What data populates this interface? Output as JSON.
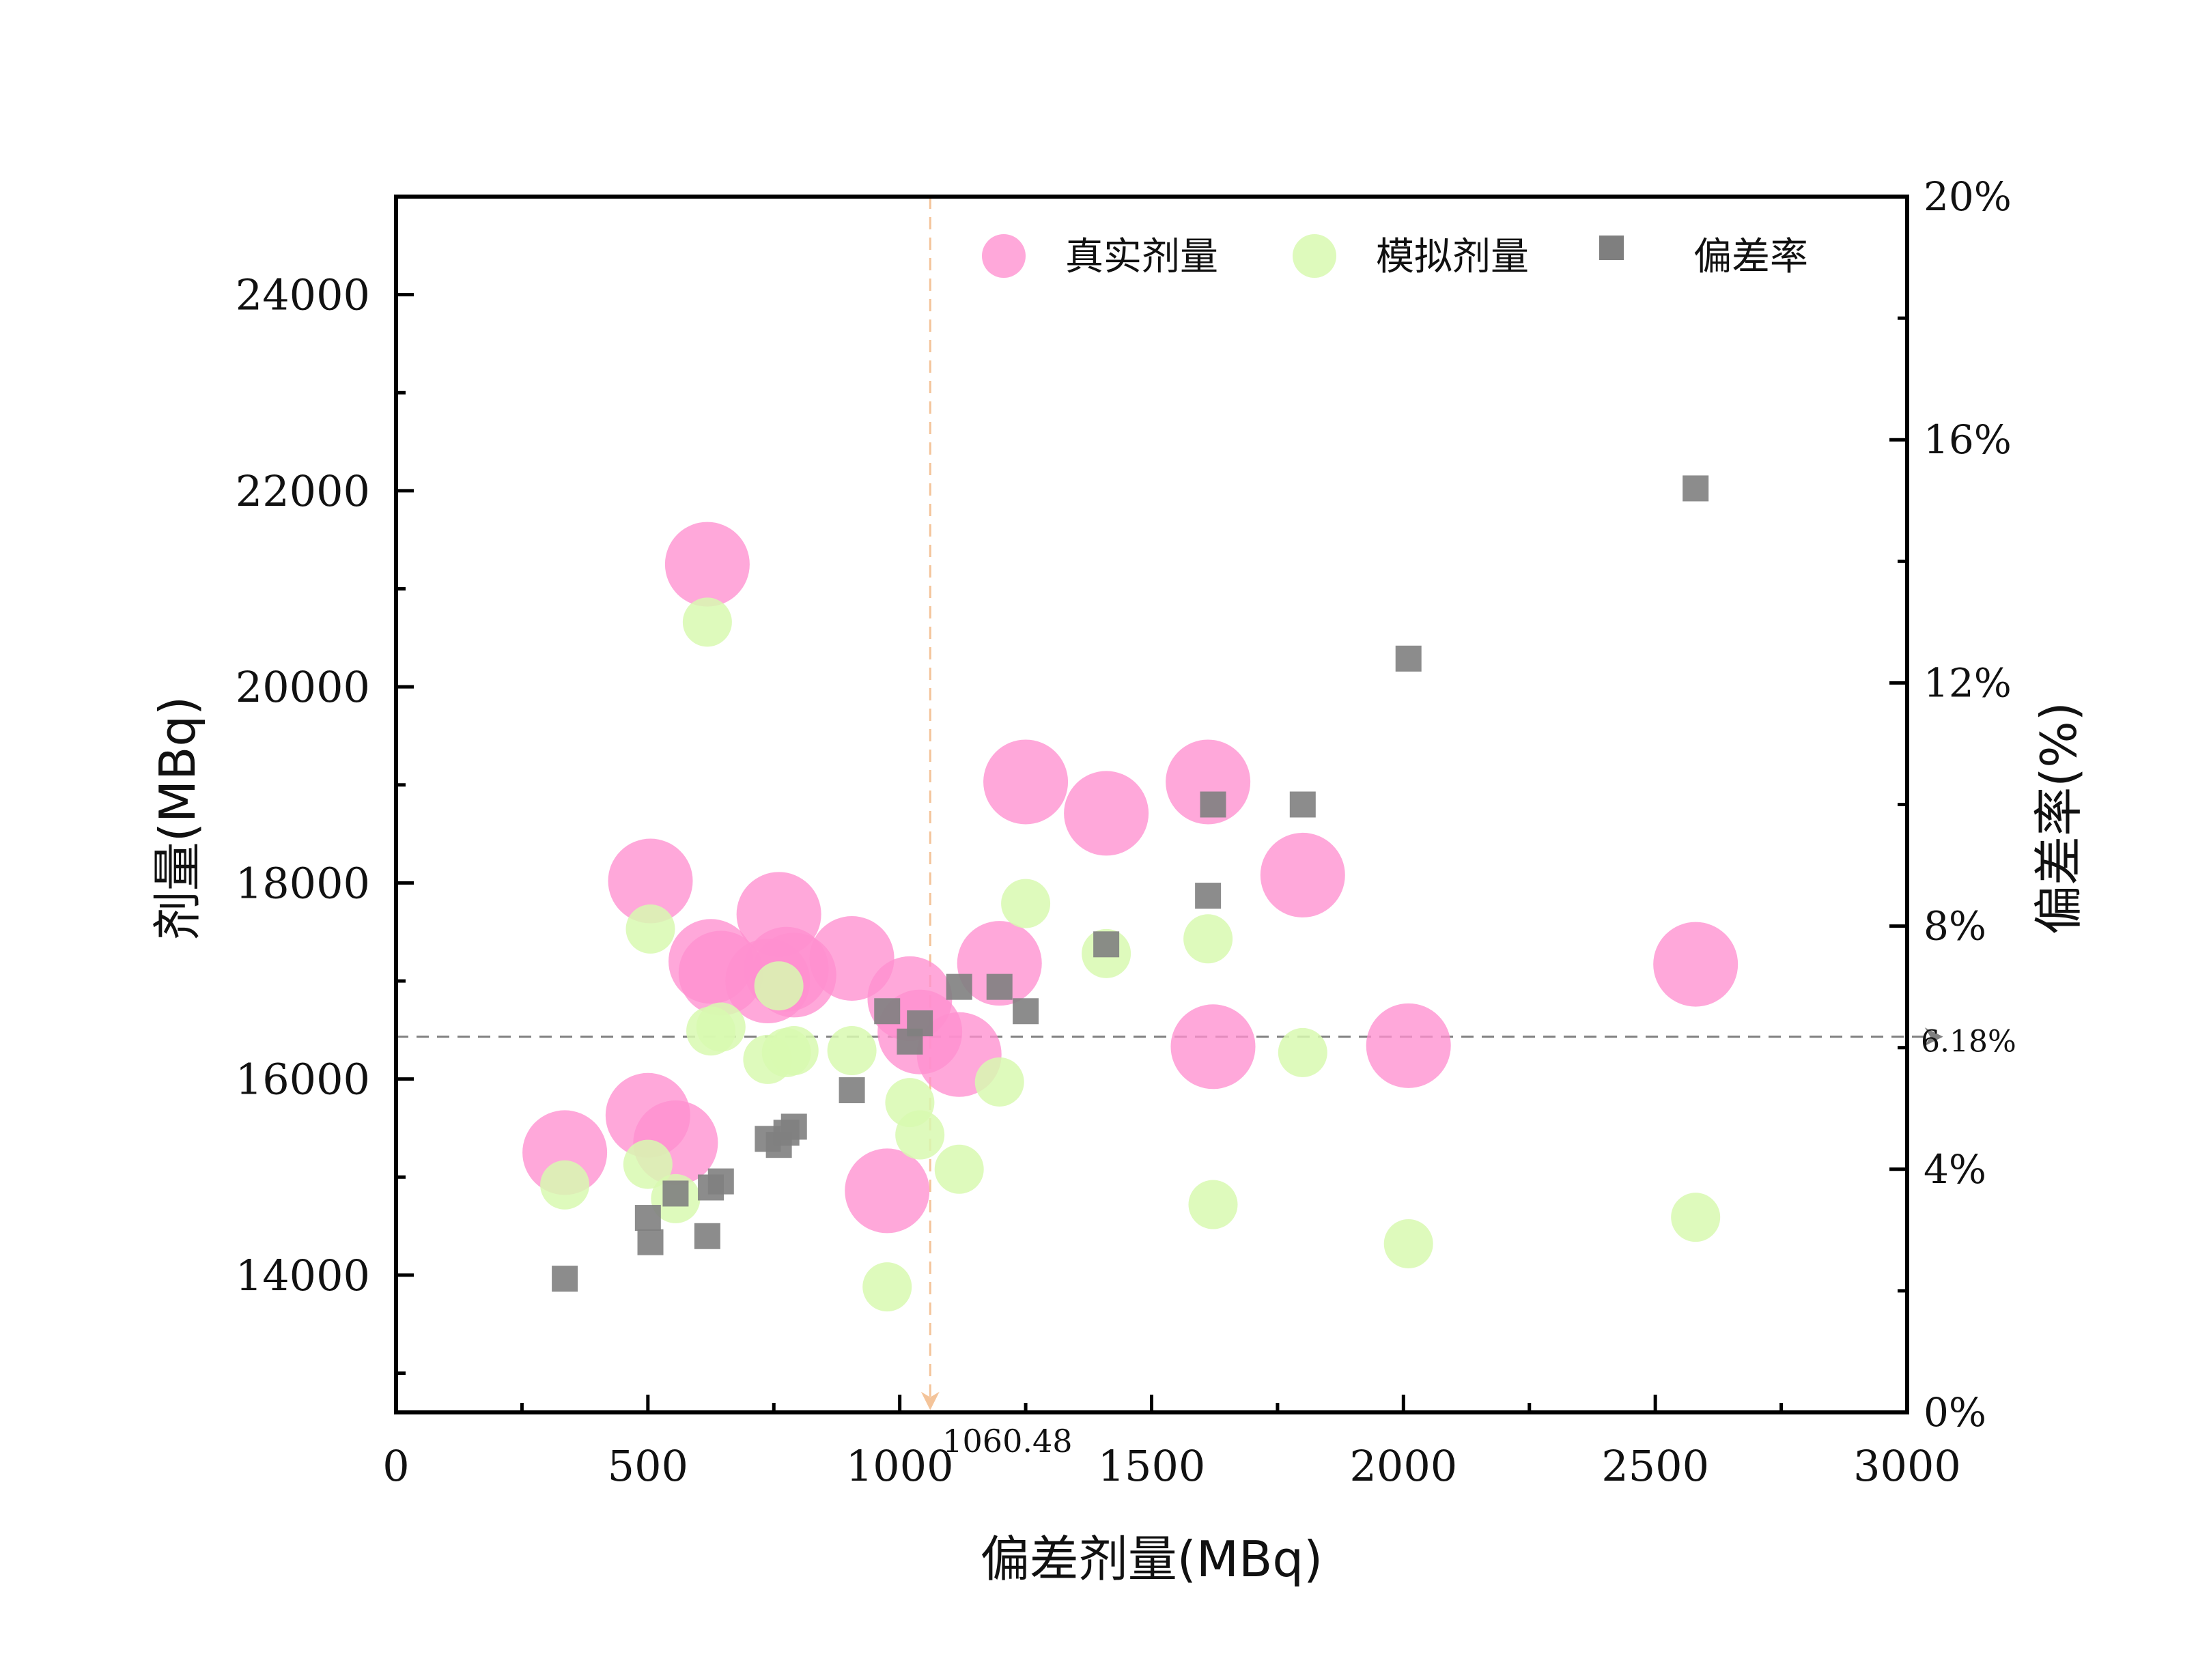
{
  "chart_data": {
    "type": "scatter",
    "xlabel": "偏差剂量(MBq)",
    "ylabel": "剂量(MBq)",
    "y2label": "偏差率(%)",
    "xlim": [
      0,
      3000
    ],
    "ylim": [
      12600,
      25000
    ],
    "y2lim": [
      0,
      20
    ],
    "x_ticks": [
      0,
      500,
      1000,
      1500,
      2000,
      2500,
      3000
    ],
    "x_tick_labels": [
      "0",
      "500",
      "1000",
      "1500",
      "2000",
      "2500",
      "3000"
    ],
    "y_ticks": [
      14000,
      16000,
      18000,
      20000,
      22000,
      24000
    ],
    "y_tick_labels": [
      "14000",
      "16000",
      "18000",
      "20000",
      "22000",
      "24000"
    ],
    "y2_ticks": [
      0,
      4,
      8,
      12,
      16,
      20
    ],
    "y2_tick_labels": [
      "0%",
      "4%",
      "8%",
      "12%",
      "16%",
      "20%"
    ],
    "legend_position": "top",
    "grid": false,
    "series": [
      {
        "name": "真实剂量",
        "marker": "circle",
        "color": "#ff8fd0",
        "axis": "left",
        "x": [
          335,
          500,
          505,
          555,
          618,
          625,
          645,
          738,
          760,
          775,
          790,
          905,
          975,
          1020,
          1040,
          1118,
          1198,
          1250,
          1410,
          1612,
          1622,
          1800,
          2010,
          2580
        ],
        "y": [
          15250,
          15630,
          18020,
          15350,
          21250,
          17200,
          17080,
          17000,
          17680,
          17120,
          17060,
          17230,
          14860,
          16820,
          16480,
          16250,
          17180,
          19030,
          18710,
          19030,
          16330,
          18080,
          16340,
          17170
        ]
      },
      {
        "name": "模拟剂量",
        "marker": "circle",
        "color": "#d8f9b0",
        "axis": "left",
        "x": [
          335,
          500,
          505,
          555,
          618,
          625,
          645,
          738,
          760,
          775,
          790,
          905,
          975,
          1020,
          1040,
          1118,
          1198,
          1250,
          1410,
          1612,
          1622,
          1800,
          2010,
          2580
        ],
        "y": [
          14920,
          15130,
          17530,
          14780,
          20660,
          16490,
          16530,
          16200,
          16950,
          16270,
          16290,
          16290,
          13880,
          15760,
          15430,
          15080,
          15970,
          17790,
          17280,
          17430,
          14720,
          16270,
          14320,
          14590
        ]
      },
      {
        "name": "偏差率",
        "marker": "square",
        "color": "#7f7f7f",
        "axis": "right",
        "x": [
          335,
          500,
          505,
          555,
          618,
          625,
          645,
          738,
          760,
          775,
          790,
          905,
          975,
          1020,
          1040,
          1118,
          1198,
          1250,
          1410,
          1612,
          1622,
          1800,
          2010,
          2580
        ],
        "y": [
          2.2,
          3.2,
          2.8,
          3.6,
          2.9,
          3.7,
          3.8,
          4.5,
          4.4,
          4.6,
          4.7,
          5.3,
          6.6,
          6.1,
          6.4,
          7.0,
          7.0,
          6.6,
          7.7,
          8.5,
          10.0,
          10.0,
          12.4,
          15.2
        ]
      }
    ],
    "reference_lines": [
      {
        "orientation": "vertical",
        "x": 1060.48,
        "label": "1060.48",
        "color": "#f4c49a"
      },
      {
        "orientation": "horizontal",
        "y2": 6.18,
        "label": "6.18%",
        "color": "#808080"
      }
    ]
  }
}
